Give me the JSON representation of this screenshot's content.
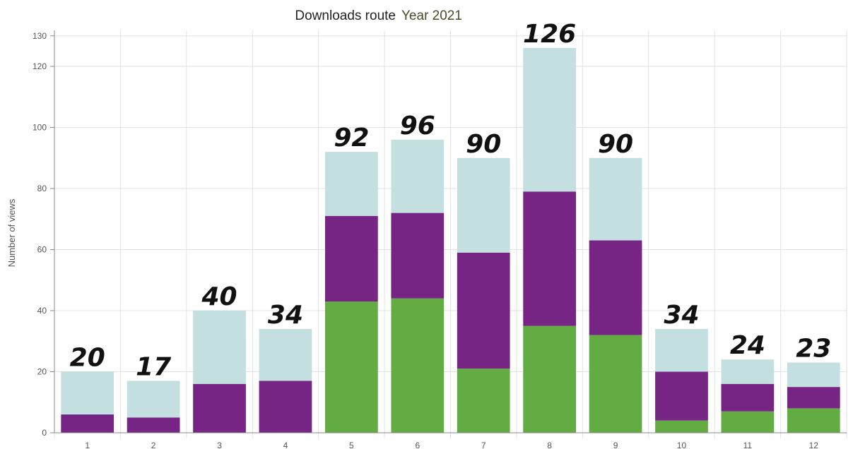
{
  "chart_data": {
    "type": "bar",
    "stacked": true,
    "title": "Downloads route",
    "title_year": "Year 2021",
    "xlabel": "",
    "ylabel": "Number of views",
    "ylim": [
      0,
      130
    ],
    "yticks": [
      0,
      20,
      40,
      60,
      80,
      100,
      120,
      130
    ],
    "grid": true,
    "categories": [
      "1",
      "2",
      "3",
      "4",
      "5",
      "6",
      "7",
      "8",
      "9",
      "10",
      "11",
      "12"
    ],
    "series": [
      {
        "color": "#63ac44",
        "values": [
          0,
          0,
          0,
          0,
          43,
          44,
          21,
          35,
          32,
          4,
          7,
          8
        ]
      },
      {
        "color": "#772584",
        "values": [
          6,
          5,
          16,
          17,
          28,
          28,
          38,
          44,
          31,
          16,
          9,
          7
        ]
      },
      {
        "color": "#c4dfe0",
        "values": [
          14,
          12,
          24,
          17,
          21,
          24,
          31,
          47,
          27,
          14,
          8,
          8
        ]
      }
    ],
    "totals": [
      "20",
      "17",
      "40",
      "34",
      "92",
      "96",
      "90",
      "126",
      "90",
      "34",
      "24",
      "23"
    ]
  }
}
